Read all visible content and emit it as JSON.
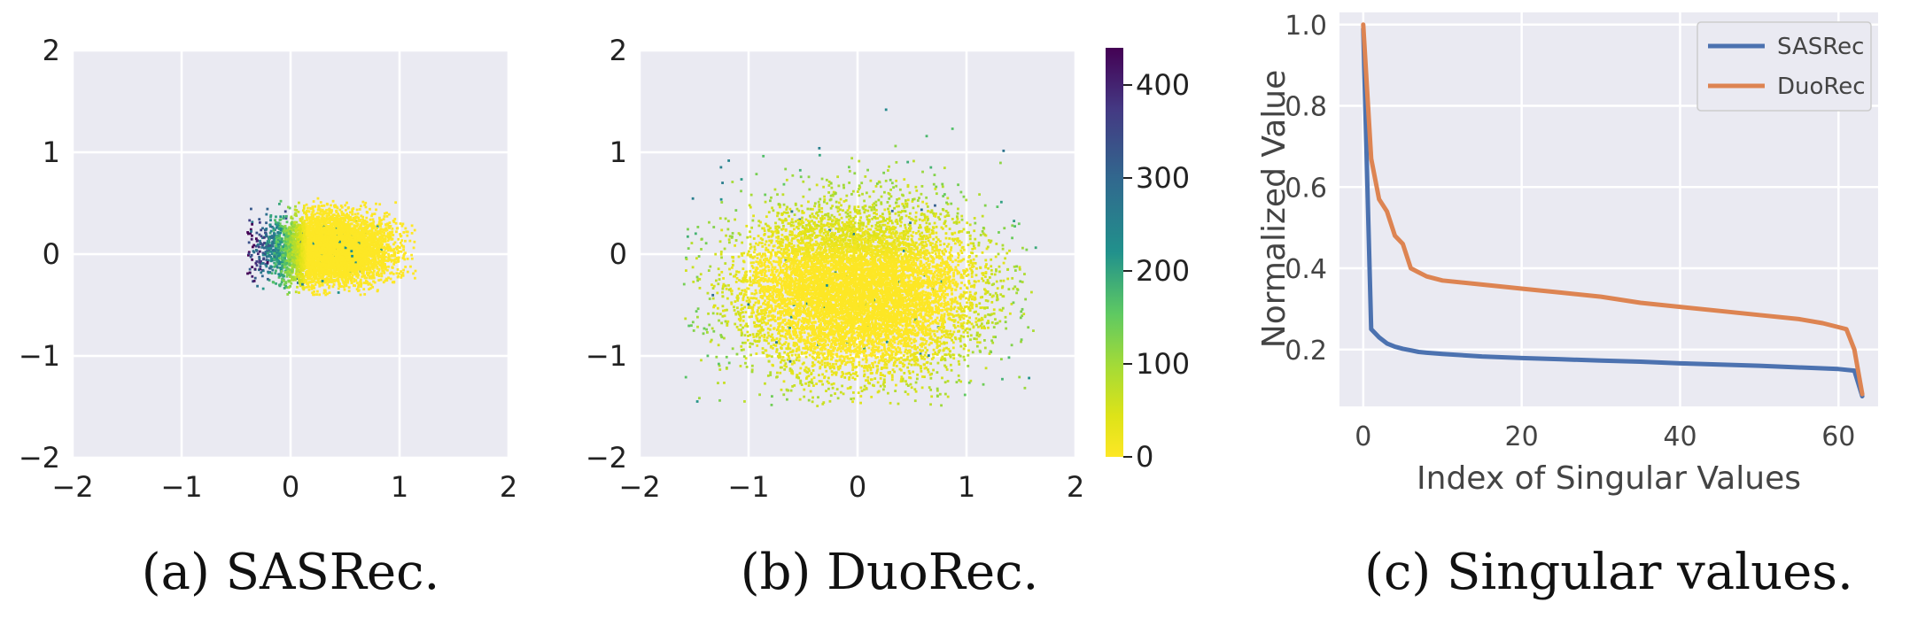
{
  "chart_data": [
    {
      "type": "scatter",
      "caption": "(a) SASRec.",
      "xlim": [
        -2,
        2
      ],
      "ylim": [
        -2,
        2
      ],
      "xticks": [
        "−2",
        "−1",
        "0",
        "1",
        "2"
      ],
      "yticks": [
        "−2",
        "−1",
        "0",
        "1",
        "2"
      ],
      "grid": true,
      "cloud": {
        "center": [
          0.35,
          0.05
        ],
        "spread": [
          0.28,
          0.17
        ],
        "x_range": [
          -0.4,
          1.15
        ],
        "y_range": [
          -0.4,
          0.55
        ],
        "count": 6000
      }
    },
    {
      "type": "scatter",
      "caption": "(b) DuoRec.",
      "xlim": [
        -2,
        2
      ],
      "ylim": [
        -2,
        2
      ],
      "xticks": [
        "−2",
        "−1",
        "0",
        "1",
        "2"
      ],
      "yticks": [
        "−2",
        "−1",
        "0",
        "1",
        "2"
      ],
      "grid": true,
      "cloud": {
        "center": [
          0.0,
          -0.35
        ],
        "spread": [
          0.55,
          0.42
        ],
        "x_range": [
          -1.6,
          1.65
        ],
        "y_range": [
          -1.5,
          1.5
        ],
        "count": 9000
      },
      "colorbar": {
        "range": [
          0,
          440
        ],
        "ticks": [
          "0",
          "100",
          "200",
          "300",
          "400"
        ],
        "tick_values": [
          0,
          100,
          200,
          300,
          400
        ],
        "colormap": "viridis_r"
      }
    },
    {
      "type": "line",
      "caption": "(c) Singular values.",
      "xlabel": "Index of Singular Values",
      "ylabel": "Normalized Value",
      "xlim": [
        -3,
        65
      ],
      "ylim": [
        0.06,
        1.03
      ],
      "xticks": [
        "0",
        "20",
        "40",
        "60"
      ],
      "xtick_values": [
        0,
        20,
        40,
        60
      ],
      "yticks": [
        "0.2",
        "0.4",
        "0.6",
        "0.8",
        "1.0"
      ],
      "ytick_values": [
        0.2,
        0.4,
        0.6,
        0.8,
        1.0
      ],
      "grid": true,
      "legend": "top-right",
      "series": [
        {
          "name": "SASRec",
          "color": "#4c72b0",
          "x": [
            0,
            1,
            2,
            3,
            4,
            5,
            6,
            7,
            8,
            10,
            15,
            20,
            25,
            30,
            35,
            40,
            45,
            50,
            55,
            60,
            62,
            63
          ],
          "y": [
            0.99,
            0.25,
            0.23,
            0.215,
            0.207,
            0.202,
            0.198,
            0.194,
            0.192,
            0.189,
            0.183,
            0.179,
            0.176,
            0.173,
            0.17,
            0.166,
            0.163,
            0.16,
            0.156,
            0.152,
            0.148,
            0.085
          ]
        },
        {
          "name": "DuoRec",
          "color": "#dd8452",
          "x": [
            0,
            1,
            2,
            3,
            4,
            5,
            6,
            7,
            8,
            10,
            15,
            20,
            25,
            30,
            35,
            40,
            45,
            50,
            55,
            58,
            60,
            61,
            62,
            63
          ],
          "y": [
            1.0,
            0.67,
            0.57,
            0.54,
            0.48,
            0.46,
            0.4,
            0.39,
            0.38,
            0.37,
            0.36,
            0.35,
            0.34,
            0.33,
            0.315,
            0.305,
            0.295,
            0.285,
            0.275,
            0.265,
            0.255,
            0.25,
            0.2,
            0.09
          ]
        }
      ]
    }
  ]
}
